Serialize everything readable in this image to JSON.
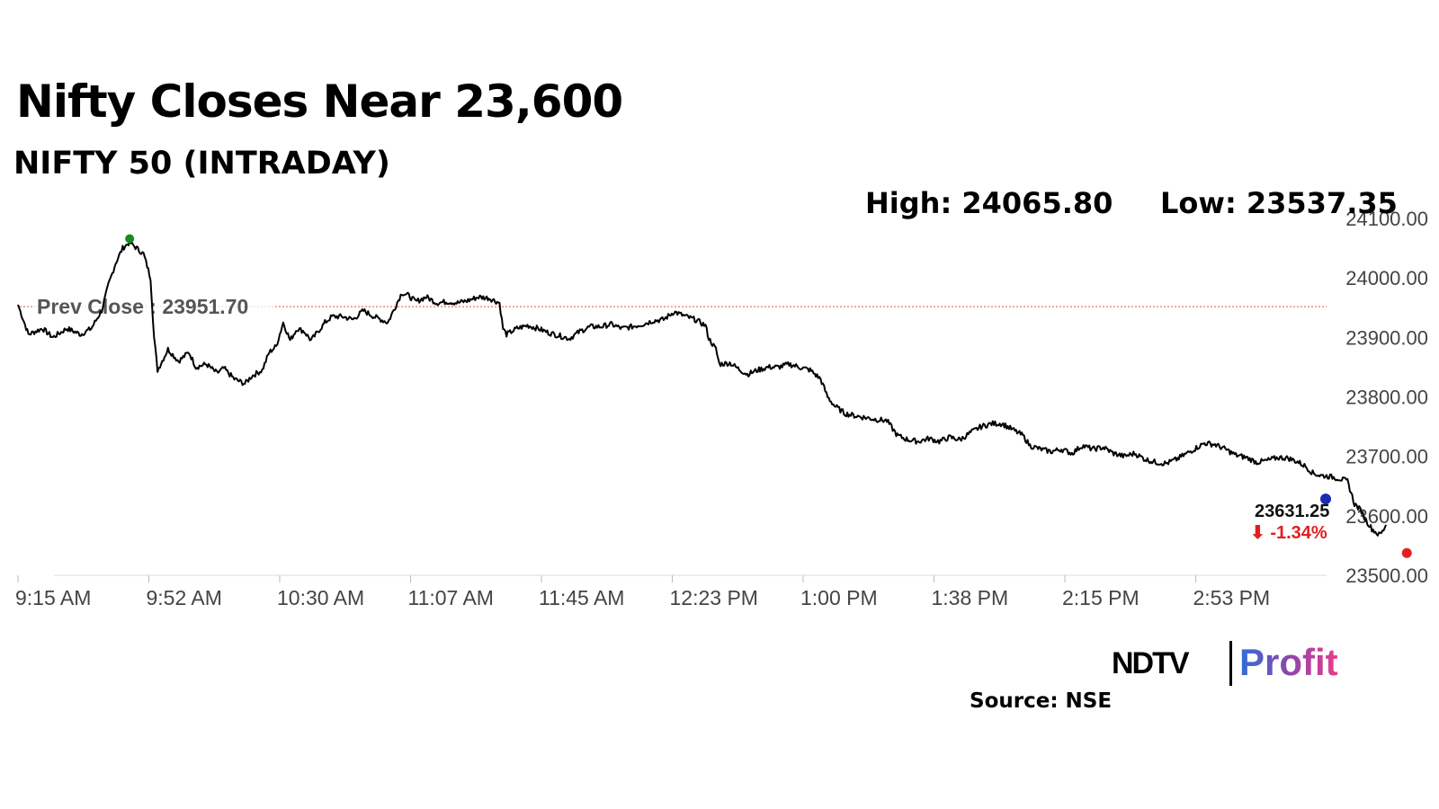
{
  "chart_data": {
    "type": "line",
    "title": "Nifty Closes Near 23,600",
    "subtitle": "NIFTY 50 (INTRADAY)",
    "high_label": "High: 24065.80",
    "low_label": "Low: 23537.35",
    "high": 24065.8,
    "low": 23537.35,
    "prev_close": 23951.7,
    "prev_close_label": "Prev Close : 23951.70",
    "last_value": 23631.25,
    "last_value_label": "23631.25",
    "change_label": "⬇ -1.34%",
    "ylim": [
      23500,
      24100
    ],
    "y_ticks": [
      24100,
      24000,
      23900,
      23800,
      23700,
      23600,
      23500
    ],
    "y_tick_labels": [
      "24100.00",
      "24000.00",
      "23900.00",
      "23800.00",
      "23700.00",
      "23600.00",
      "23500.00"
    ],
    "x_tick_labels": [
      "9:15 AM",
      "9:52 AM",
      "10:30 AM",
      "11:07 AM",
      "11:45 AM",
      "12:23 PM",
      "1:00 PM",
      "1:38 PM",
      "2:15 PM",
      "2:53 PM"
    ],
    "x_start": "9:15 AM",
    "x_step_minutes": 37.5,
    "x_end_minutes": 375,
    "line_color": "#000000",
    "prev_close_color": "#d9534f",
    "high_marker_color": "#1a8a1a",
    "low_marker_color": "#e02020",
    "end_marker_color": "#1a2bb0",
    "change_color": "#e02020",
    "series": [
      {
        "points": [
          [
            0,
            23955
          ],
          [
            3,
            23905
          ],
          [
            7,
            23915
          ],
          [
            10,
            23900
          ],
          [
            14,
            23915
          ],
          [
            18,
            23905
          ],
          [
            21,
            23915
          ],
          [
            24,
            23945
          ],
          [
            26,
            23990
          ],
          [
            28,
            24025
          ],
          [
            30,
            24050
          ],
          [
            32,
            24060
          ],
          [
            34,
            24050
          ],
          [
            36,
            24040
          ],
          [
            38,
            24000
          ],
          [
            39,
            23900
          ],
          [
            40,
            23845
          ],
          [
            43,
            23880
          ],
          [
            46,
            23860
          ],
          [
            49,
            23875
          ],
          [
            51,
            23850
          ],
          [
            54,
            23855
          ],
          [
            57,
            23840
          ],
          [
            59,
            23848
          ],
          [
            62,
            23830
          ],
          [
            65,
            23822
          ],
          [
            67,
            23835
          ],
          [
            70,
            23845
          ],
          [
            72,
            23875
          ],
          [
            74,
            23885
          ],
          [
            76,
            23925
          ],
          [
            78,
            23895
          ],
          [
            80,
            23915
          ],
          [
            82,
            23910
          ],
          [
            84,
            23895
          ],
          [
            86,
            23910
          ],
          [
            88,
            23925
          ],
          [
            90,
            23935
          ],
          [
            93,
            23935
          ],
          [
            96,
            23930
          ],
          [
            99,
            23945
          ],
          [
            102,
            23935
          ],
          [
            104,
            23930
          ],
          [
            106,
            23925
          ],
          [
            108,
            23950
          ],
          [
            110,
            23975
          ],
          [
            112,
            23970
          ],
          [
            114,
            23960
          ],
          [
            117,
            23968
          ],
          [
            120,
            23958
          ],
          [
            123,
            23960
          ],
          [
            126,
            23958
          ],
          [
            129,
            23962
          ],
          [
            132,
            23968
          ],
          [
            135,
            23966
          ],
          [
            138,
            23958
          ],
          [
            139,
            23915
          ],
          [
            140,
            23905
          ],
          [
            143,
            23915
          ],
          [
            146,
            23920
          ],
          [
            149,
            23915
          ],
          [
            152,
            23908
          ],
          [
            155,
            23903
          ],
          [
            158,
            23898
          ],
          [
            161,
            23910
          ],
          [
            164,
            23918
          ],
          [
            167,
            23918
          ],
          [
            170,
            23922
          ],
          [
            173,
            23915
          ],
          [
            176,
            23918
          ],
          [
            179,
            23922
          ],
          [
            182,
            23928
          ],
          [
            185,
            23930
          ],
          [
            188,
            23943
          ],
          [
            191,
            23936
          ],
          [
            194,
            23930
          ],
          [
            197,
            23920
          ],
          [
            198,
            23898
          ],
          [
            200,
            23880
          ],
          [
            201,
            23855
          ],
          [
            204,
            23857
          ],
          [
            207,
            23845
          ],
          [
            209,
            23838
          ],
          [
            212,
            23845
          ],
          [
            215,
            23850
          ],
          [
            218,
            23850
          ],
          [
            221,
            23855
          ],
          [
            224,
            23850
          ],
          [
            227,
            23845
          ],
          [
            230,
            23830
          ],
          [
            232,
            23800
          ],
          [
            234,
            23785
          ],
          [
            237,
            23772
          ],
          [
            240,
            23768
          ],
          [
            243,
            23765
          ],
          [
            246,
            23762
          ],
          [
            249,
            23760
          ],
          [
            252,
            23735
          ],
          [
            255,
            23728
          ],
          [
            258,
            23725
          ],
          [
            261,
            23730
          ],
          [
            264,
            23725
          ],
          [
            267,
            23732
          ],
          [
            270,
            23728
          ],
          [
            273,
            23740
          ],
          [
            276,
            23750
          ],
          [
            279,
            23755
          ],
          [
            282,
            23755
          ],
          [
            285,
            23745
          ],
          [
            288,
            23735
          ],
          [
            290,
            23718
          ],
          [
            293,
            23712
          ],
          [
            296,
            23708
          ],
          [
            299,
            23712
          ],
          [
            302,
            23705
          ],
          [
            305,
            23718
          ],
          [
            308,
            23712
          ],
          [
            311,
            23715
          ],
          [
            314,
            23705
          ],
          [
            317,
            23700
          ],
          [
            320,
            23705
          ],
          [
            323,
            23695
          ],
          [
            326,
            23690
          ],
          [
            329,
            23688
          ],
          [
            332,
            23695
          ],
          [
            335,
            23705
          ],
          [
            337,
            23712
          ],
          [
            340,
            23722
          ],
          [
            343,
            23720
          ],
          [
            346,
            23712
          ],
          [
            349,
            23702
          ],
          [
            352,
            23698
          ],
          [
            355,
            23690
          ],
          [
            358,
            23693
          ],
          [
            361,
            23698
          ],
          [
            364,
            23697
          ],
          [
            367,
            23690
          ],
          [
            369,
            23683
          ],
          [
            371,
            23672
          ],
          [
            373,
            23668
          ],
          [
            376,
            23666
          ],
          [
            379,
            23662
          ],
          [
            381,
            23658
          ],
          [
            383,
            23620
          ],
          [
            385,
            23608
          ],
          [
            386,
            23595
          ],
          [
            388,
            23578
          ],
          [
            390,
            23568
          ],
          [
            391,
            23573
          ],
          [
            392,
            23585
          ]
        ]
      }
    ]
  }
}
